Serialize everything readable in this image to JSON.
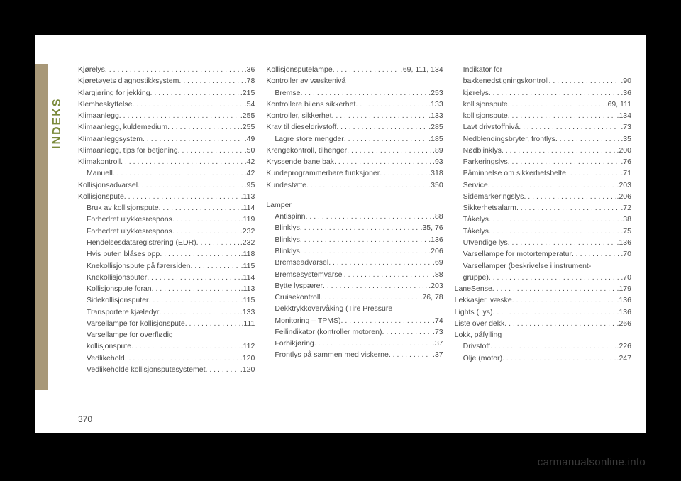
{
  "vlabel_color": "#7a8a3a",
  "text_color": "#4a4a4a",
  "vertical_label": "INDEKS",
  "page_number": "370",
  "watermark": "carmanualsonline.info",
  "columns": [
    [
      {
        "l": "Kjørelys",
        "p": ".36"
      },
      {
        "l": "Kjøretøyets diagnostikksystem",
        "p": ".78"
      },
      {
        "l": "Klargjøring for jekking",
        "p": ".215"
      },
      {
        "l": "Klembeskyttelse",
        "p": ".54"
      },
      {
        "l": "Klimaanlegg",
        "p": ".255"
      },
      {
        "l": "Klimaanlegg, kuldemedium",
        "p": ".255"
      },
      {
        "l": "Klimaanleggsystem",
        "p": ".49"
      },
      {
        "l": "Klimaanlegg, tips for betjening",
        "p": ".50"
      },
      {
        "l": "Klimakontroll",
        "p": ".42"
      },
      {
        "l": "Manuell",
        "p": ".42",
        "i": 1
      },
      {
        "l": "Kollisjonsadvarsel",
        "p": ".95"
      },
      {
        "l": "Kollisjonspute",
        "p": ".113"
      },
      {
        "l": "Bruk av kollisjonspute",
        "p": ".114",
        "i": 1
      },
      {
        "l": "Forbedret ulykkesrespons",
        "p": ".119",
        "i": 1
      },
      {
        "l": "Forbedret ulykkesrespons",
        "p": ".232",
        "i": 1
      },
      {
        "l": "Hendelsesdataregistrering (EDR)",
        "p": ".232",
        "i": 1
      },
      {
        "l": "Hvis puten blåses opp",
        "p": ".118",
        "i": 1
      },
      {
        "l": "Knekollisjonspute på førersiden",
        "p": ".115",
        "i": 1
      },
      {
        "l": "Knekollisjonsputer",
        "p": ".114",
        "i": 1
      },
      {
        "l": "Kollisjonspute foran",
        "p": ".113",
        "i": 1
      },
      {
        "l": "Sidekollisjonsputer",
        "p": ".115",
        "i": 1
      },
      {
        "l": "Transportere kjæledyr",
        "p": ".133",
        "i": 1
      },
      {
        "l": "Varsellampe for kollisjonspute",
        "p": ".111",
        "i": 1
      },
      {
        "l": "Varsellampe for overflødig",
        "i": 1,
        "nowrap": 1
      },
      {
        "l": "kollisjonspute",
        "p": ".112",
        "i": 1
      },
      {
        "l": "Vedlikehold",
        "p": ".120",
        "i": 1
      },
      {
        "l": "Vedlikeholde kollisjonsputesystemet",
        "p": ".120",
        "i": 1
      }
    ],
    [
      {
        "l": "Kollisjonsputelampe",
        "p": ".69, 111, 134"
      },
      {
        "l": "Kontroller av væskenivå"
      },
      {
        "l": "Bremse",
        "p": ".253",
        "i": 1
      },
      {
        "l": "Kontrollere bilens sikkerhet",
        "p": ".133"
      },
      {
        "l": "Kontroller, sikkerhet",
        "p": ".133"
      },
      {
        "l": "Krav til dieseldrivstoff",
        "p": ".285"
      },
      {
        "l": "Lagre store mengder",
        "p": ".185",
        "i": 1
      },
      {
        "l": "Krengekontroll, tilhenger",
        "p": ".89"
      },
      {
        "l": "Kryssende bane bak",
        "p": ".93"
      },
      {
        "l": "Kundeprogrammerbare funksjoner",
        "p": ".318"
      },
      {
        "l": "Kundestøtte",
        "p": ".350"
      },
      {
        "blank": 1
      },
      {
        "l": "Lamper"
      },
      {
        "l": "Antispinn",
        "p": ".88",
        "i": 1
      },
      {
        "l": "Blinklys",
        "p": ".35, 76",
        "i": 1
      },
      {
        "l": "Blinklys",
        "p": ".136",
        "i": 1
      },
      {
        "l": "Blinklys",
        "p": ".206",
        "i": 1
      },
      {
        "l": "Bremseadvarsel",
        "p": ".69",
        "i": 1
      },
      {
        "l": "Bremsesystemvarsel",
        "p": ".88",
        "i": 1
      },
      {
        "l": "Bytte lyspærer",
        "p": ".203",
        "i": 1
      },
      {
        "l": "Cruisekontroll",
        "p": ".76, 78",
        "i": 1
      },
      {
        "l": "Dekktrykkovervåking (Tire Pressure",
        "i": 1,
        "nowrap": 1
      },
      {
        "l": "Monitoring – TPMS)",
        "p": ".74",
        "i": 1
      },
      {
        "l": "Feilindikator (kontroller motoren)",
        "p": ".73",
        "i": 1
      },
      {
        "l": "Forbikjøring",
        "p": ".37",
        "i": 1
      },
      {
        "l": "Frontlys på sammen med viskerne",
        "p": ".37",
        "i": 1
      }
    ],
    [
      {
        "l": "Indikator for",
        "i": 1,
        "nowrap": 1
      },
      {
        "l": "bakkenedstigningskontroll",
        "p": ".90",
        "i": 1
      },
      {
        "l": "kjørelys",
        "p": ".36",
        "i": 1
      },
      {
        "l": "kollisjonspute",
        "p": ".69, 111",
        "i": 1
      },
      {
        "l": "kollisjonspute",
        "p": ".134",
        "i": 1
      },
      {
        "l": "Lavt drivstoffnivå",
        "p": ".73",
        "i": 1
      },
      {
        "l": "Nedblendingsbryter, frontlys",
        "p": ".35",
        "i": 1
      },
      {
        "l": "Nødblinklys",
        "p": ".200",
        "i": 1
      },
      {
        "l": "Parkeringslys",
        "p": ".76",
        "i": 1
      },
      {
        "l": "Påminnelse om sikkerhetsbelte",
        "p": ".71",
        "i": 1
      },
      {
        "l": "Service",
        "p": ".203",
        "i": 1
      },
      {
        "l": "Sidemarkeringslys",
        "p": ".206",
        "i": 1
      },
      {
        "l": "Sikkerhetsalarm",
        "p": ".72",
        "i": 1
      },
      {
        "l": "Tåkelys",
        "p": ".38",
        "i": 1
      },
      {
        "l": "Tåkelys",
        "p": ".75",
        "i": 1
      },
      {
        "l": "Utvendige lys",
        "p": ".136",
        "i": 1
      },
      {
        "l": "Varsellampe for motortemperatur",
        "p": ".70",
        "i": 1
      },
      {
        "l": "Varsellamper (beskrivelse i instrument-",
        "i": 1,
        "nowrap": 1
      },
      {
        "l": "gruppe)",
        "p": ".70",
        "i": 1
      },
      {
        "l": "LaneSense",
        "p": ".179"
      },
      {
        "l": "Lekkasjer, væske",
        "p": ".136"
      },
      {
        "l": "Lights (Lys)",
        "p": ".136"
      },
      {
        "l": "Liste over dekk",
        "p": ".266"
      },
      {
        "l": "Lokk, påfylling"
      },
      {
        "l": "Drivstoff",
        "p": ".226",
        "i": 1
      },
      {
        "l": "Olje (motor)",
        "p": ".247",
        "i": 1
      }
    ]
  ]
}
